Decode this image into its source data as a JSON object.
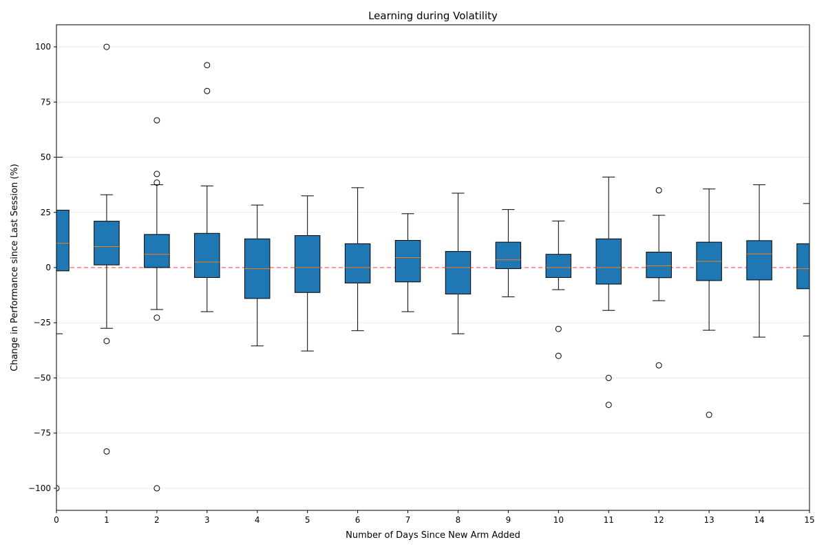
{
  "chart_data": {
    "type": "box",
    "title": "Learning during Volatility",
    "xlabel": "Number of Days Since New Arm Added",
    "ylabel": "Change in Performance since Last Session (%)",
    "xlim": [
      0,
      15
    ],
    "ylim": [
      -110,
      110
    ],
    "x_ticks": [
      "0",
      "1",
      "2",
      "3",
      "4",
      "5",
      "6",
      "7",
      "8",
      "9",
      "10",
      "11",
      "12",
      "13",
      "14",
      "15"
    ],
    "y_ticks": [
      {
        "value": 100,
        "label": "100"
      },
      {
        "value": 75,
        "label": "75"
      },
      {
        "value": 50,
        "label": "50"
      },
      {
        "value": 25,
        "label": "25"
      },
      {
        "value": 0,
        "label": "0"
      },
      {
        "value": -25,
        "label": "−25"
      },
      {
        "value": -50,
        "label": "−50"
      },
      {
        "value": -75,
        "label": "−75"
      },
      {
        "value": -100,
        "label": "−100"
      }
    ],
    "grid": "horizontal",
    "reference_line": {
      "y": 0,
      "style": "dashed",
      "color": "#ff6b6b"
    },
    "colors": {
      "box_fill": "#1f77b4",
      "median": "#ff7f0e",
      "outline": "#000000",
      "grid": "#e6e6e6"
    },
    "boxes": [
      {
        "x": 0,
        "q1": -1.5,
        "median": 11,
        "q3": 26,
        "whisker_low": -30,
        "whisker_high": 50,
        "outliers": [
          -100
        ]
      },
      {
        "x": 1,
        "q1": 1.2,
        "median": 9.5,
        "q3": 21,
        "whisker_low": -27.5,
        "whisker_high": 33,
        "outliers": [
          100,
          -33.3,
          -83.3
        ]
      },
      {
        "x": 2,
        "q1": 0,
        "median": 6,
        "q3": 15,
        "whisker_low": -19,
        "whisker_high": 37.5,
        "outliers": [
          66.7,
          42.4,
          38.5,
          -22.7,
          -100
        ]
      },
      {
        "x": 3,
        "q1": -4.5,
        "median": 2.5,
        "q3": 15.5,
        "whisker_low": -20,
        "whisker_high": 37,
        "outliers": [
          91.7,
          80
        ]
      },
      {
        "x": 4,
        "q1": -14,
        "median": -0.5,
        "q3": 13,
        "whisker_low": -35.5,
        "whisker_high": 28.3,
        "outliers": []
      },
      {
        "x": 5,
        "q1": -11.3,
        "median": 0,
        "q3": 14.5,
        "whisker_low": -37.8,
        "whisker_high": 32.5,
        "outliers": []
      },
      {
        "x": 6,
        "q1": -7,
        "median": 0,
        "q3": 10.8,
        "whisker_low": -28.6,
        "whisker_high": 36.2,
        "outliers": []
      },
      {
        "x": 7,
        "q1": -6.5,
        "median": 4.5,
        "q3": 12.3,
        "whisker_low": -20,
        "whisker_high": 24.4,
        "outliers": []
      },
      {
        "x": 8,
        "q1": -12,
        "median": 0,
        "q3": 7.3,
        "whisker_low": -30,
        "whisker_high": 33.7,
        "outliers": []
      },
      {
        "x": 9,
        "q1": -0.5,
        "median": 3.5,
        "q3": 11.5,
        "whisker_low": -13.3,
        "whisker_high": 26.3,
        "outliers": []
      },
      {
        "x": 10,
        "q1": -4.5,
        "median": 0,
        "q3": 6,
        "whisker_low": -10,
        "whisker_high": 21.1,
        "outliers": [
          -27.8,
          -40
        ]
      },
      {
        "x": 11,
        "q1": -7.5,
        "median": 0,
        "q3": 13,
        "whisker_low": -19.4,
        "whisker_high": 41,
        "outliers": [
          -50,
          -62.2
        ]
      },
      {
        "x": 12,
        "q1": -4.6,
        "median": 0.8,
        "q3": 7,
        "whisker_low": -15,
        "whisker_high": 23.7,
        "outliers": [
          35,
          -44.3
        ]
      },
      {
        "x": 13,
        "q1": -5.9,
        "median": 2.8,
        "q3": 11.5,
        "whisker_low": -28.4,
        "whisker_high": 35.6,
        "outliers": [
          -66.7
        ]
      },
      {
        "x": 14,
        "q1": -5.6,
        "median": 6.2,
        "q3": 12.2,
        "whisker_low": -31.5,
        "whisker_high": 37.5,
        "outliers": []
      },
      {
        "x": 15,
        "q1": -9.6,
        "median": -0.5,
        "q3": 10.8,
        "whisker_low": -31,
        "whisker_high": 29,
        "outliers": []
      }
    ]
  }
}
